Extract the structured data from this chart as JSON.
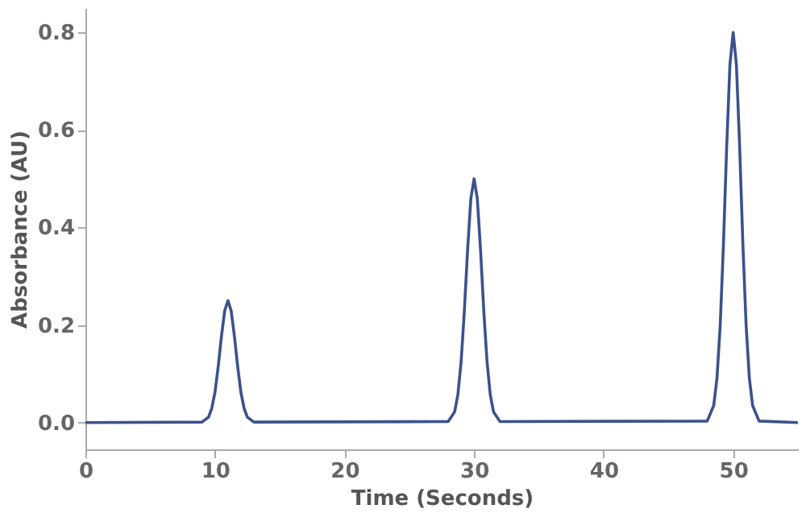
{
  "chart_data": {
    "type": "line",
    "xlabel": "Time  (Seconds)",
    "ylabel": "Absorbance  (AU)",
    "x": [
      0,
      9,
      9.5,
      9.75,
      10,
      10.25,
      10.5,
      10.75,
      11,
      11.25,
      11.5,
      11.75,
      12,
      12.25,
      12.5,
      13,
      28,
      28.5,
      28.75,
      29,
      29.25,
      29.5,
      29.75,
      30,
      30.25,
      30.5,
      30.75,
      31,
      31.25,
      31.5,
      32,
      48,
      48.5,
      48.75,
      49,
      49.25,
      49.5,
      49.75,
      50,
      50.25,
      50.5,
      50.75,
      51,
      51.25,
      51.5,
      52,
      55
    ],
    "series": [
      {
        "color": "#3b528b",
        "values": [
          0,
          0.001,
          0.011,
          0.029,
          0.062,
          0.115,
          0.177,
          0.229,
          0.25,
          0.229,
          0.177,
          0.115,
          0.062,
          0.029,
          0.011,
          0.001,
          0.002,
          0.022,
          0.057,
          0.125,
          0.229,
          0.354,
          0.459,
          0.5,
          0.459,
          0.354,
          0.229,
          0.125,
          0.057,
          0.022,
          0.002,
          0.003,
          0.035,
          0.091,
          0.199,
          0.366,
          0.566,
          0.734,
          0.8,
          0.734,
          0.566,
          0.366,
          0.199,
          0.091,
          0.035,
          0.003,
          0
        ]
      }
    ],
    "xlim": [
      0,
      55
    ],
    "xticks": [
      0,
      10,
      20,
      30,
      40,
      50
    ],
    "ylim": [
      -0.055,
      0.85
    ],
    "yticks": [
      {
        "value": 0,
        "label": "0.0"
      },
      {
        "value": 0.2,
        "label": "0.2"
      },
      {
        "value": 0.4,
        "label": "0.4"
      },
      {
        "value": 0.6,
        "label": "0.6"
      },
      {
        "value": 0.8,
        "label": "0.8"
      }
    ],
    "grid": false,
    "marker": "none",
    "line_style": "solid"
  }
}
